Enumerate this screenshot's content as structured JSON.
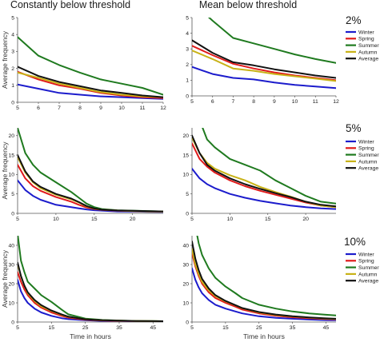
{
  "column_titles": [
    "Constantly below threshold",
    "Mean below threshold"
  ],
  "row_labels": [
    "2%",
    "5%",
    "10%"
  ],
  "ylabel": "Average frequency",
  "xlabel": "Time in hours",
  "legend": [
    "Winter",
    "Spring",
    "Summer",
    "Autumn",
    "Average"
  ],
  "series_colors": {
    "Winter": "#1c1ccc",
    "Spring": "#e01a1a",
    "Summer": "#1f7a1f",
    "Autumn": "#c8b217",
    "Average": "#111111"
  },
  "chart_data": [
    {
      "type": "line",
      "title": "Constantly below threshold",
      "threshold": "2%",
      "ylabel": "Average frequency",
      "xlabel": "",
      "xlim": [
        5,
        12
      ],
      "ylim": [
        0,
        5
      ],
      "xticks": [
        5,
        6,
        7,
        8,
        9,
        10,
        11,
        12
      ],
      "yticks": [
        0,
        1,
        2,
        3,
        4,
        5
      ],
      "x": [
        5,
        6,
        7,
        8,
        9,
        10,
        11,
        12
      ],
      "series": [
        {
          "name": "Winter",
          "values": [
            1.05,
            0.8,
            0.55,
            0.45,
            0.35,
            0.3,
            0.25,
            0.2
          ]
        },
        {
          "name": "Spring",
          "values": [
            1.8,
            1.35,
            1.0,
            0.8,
            0.55,
            0.4,
            0.3,
            0.25
          ]
        },
        {
          "name": "Summer",
          "values": [
            3.85,
            2.75,
            2.2,
            1.75,
            1.35,
            1.1,
            0.85,
            0.45
          ]
        },
        {
          "name": "Autumn",
          "values": [
            1.75,
            1.45,
            1.1,
            0.85,
            0.6,
            0.45,
            0.35,
            0.3
          ]
        },
        {
          "name": "Average",
          "values": [
            2.1,
            1.55,
            1.2,
            0.95,
            0.7,
            0.55,
            0.4,
            0.3
          ]
        }
      ]
    },
    {
      "type": "line",
      "title": "Mean below threshold",
      "threshold": "2%",
      "ylabel": "",
      "xlabel": "",
      "xlim": [
        5,
        12
      ],
      "ylim": [
        0,
        5
      ],
      "xticks": [
        5,
        6,
        7,
        8,
        9,
        10,
        11,
        12
      ],
      "yticks": [
        0,
        1,
        2,
        3,
        4,
        5
      ],
      "x": [
        5,
        6,
        7,
        8,
        9,
        10,
        11,
        12
      ],
      "series": [
        {
          "name": "Winter",
          "values": [
            1.85,
            1.4,
            1.15,
            1.05,
            0.85,
            0.7,
            0.6,
            0.5
          ]
        },
        {
          "name": "Spring",
          "values": [
            3.2,
            2.6,
            2.05,
            1.75,
            1.5,
            1.3,
            1.15,
            1.0
          ]
        },
        {
          "name": "Summer",
          "values": [
            6.0,
            4.8,
            3.7,
            3.35,
            3.0,
            2.65,
            2.35,
            2.1
          ]
        },
        {
          "name": "Autumn",
          "values": [
            2.9,
            2.35,
            1.75,
            1.6,
            1.4,
            1.25,
            1.1,
            0.95
          ]
        },
        {
          "name": "Average",
          "values": [
            3.55,
            2.75,
            2.15,
            1.95,
            1.7,
            1.5,
            1.3,
            1.15
          ]
        }
      ]
    },
    {
      "type": "line",
      "title": "Constantly below threshold",
      "threshold": "5%",
      "ylabel": "Average frequency",
      "xlabel": "",
      "xlim": [
        5,
        24
      ],
      "ylim": [
        0,
        22
      ],
      "xticks": [
        5,
        10,
        15,
        20
      ],
      "yticks": [
        0,
        5,
        10,
        15,
        20
      ],
      "x": [
        5,
        6,
        7,
        8,
        10,
        12,
        13,
        14,
        15,
        16,
        18,
        20,
        22,
        24
      ],
      "series": [
        {
          "name": "Winter",
          "values": [
            8.5,
            6.0,
            4.5,
            3.5,
            2.2,
            1.6,
            1.3,
            1.0,
            0.8,
            0.7,
            0.5,
            0.45,
            0.4,
            0.35
          ]
        },
        {
          "name": "Spring",
          "values": [
            12.5,
            9.0,
            7.0,
            5.8,
            4.2,
            3.0,
            2.2,
            1.5,
            1.1,
            0.9,
            0.7,
            0.6,
            0.5,
            0.45
          ]
        },
        {
          "name": "Summer",
          "values": [
            22.0,
            15.5,
            12.5,
            10.5,
            8.0,
            5.5,
            4.0,
            2.5,
            1.6,
            1.1,
            0.8,
            0.7,
            0.6,
            0.5
          ]
        },
        {
          "name": "Autumn",
          "values": [
            14.5,
            10.5,
            8.0,
            6.5,
            4.8,
            3.6,
            2.8,
            1.8,
            1.2,
            0.95,
            0.75,
            0.6,
            0.5,
            0.45
          ]
        },
        {
          "name": "Average",
          "values": [
            15.0,
            10.8,
            8.2,
            6.8,
            5.0,
            3.8,
            2.9,
            1.9,
            1.25,
            0.95,
            0.75,
            0.65,
            0.55,
            0.5
          ]
        }
      ]
    },
    {
      "type": "line",
      "title": "Mean below threshold",
      "threshold": "5%",
      "ylabel": "",
      "xlabel": "",
      "xlim": [
        5,
        24
      ],
      "ylim": [
        0,
        22
      ],
      "xticks": [
        5,
        10,
        15,
        20
      ],
      "yticks": [
        0,
        5,
        10,
        15,
        20
      ],
      "x": [
        5,
        6,
        7,
        8,
        10,
        12,
        14,
        16,
        18,
        20,
        22,
        24
      ],
      "series": [
        {
          "name": "Winter",
          "values": [
            11.5,
            9.0,
            7.5,
            6.5,
            5.0,
            4.0,
            3.2,
            2.6,
            2.0,
            1.6,
            1.3,
            1.1
          ]
        },
        {
          "name": "Spring",
          "values": [
            18.0,
            14.0,
            12.0,
            10.5,
            8.5,
            7.0,
            5.8,
            4.8,
            3.8,
            2.8,
            2.0,
            1.6
          ]
        },
        {
          "name": "Summer",
          "values": [
            30.0,
            24.0,
            19.0,
            17.0,
            14.0,
            12.5,
            11.0,
            8.5,
            6.5,
            4.5,
            3.0,
            2.5
          ]
        },
        {
          "name": "Autumn",
          "values": [
            19.5,
            15.5,
            13.0,
            11.5,
            9.8,
            8.5,
            6.8,
            5.5,
            4.3,
            3.0,
            2.0,
            1.6
          ]
        },
        {
          "name": "Average",
          "values": [
            20.0,
            15.5,
            12.5,
            11.0,
            9.0,
            7.5,
            6.3,
            5.2,
            4.2,
            3.0,
            2.2,
            1.8
          ]
        }
      ]
    },
    {
      "type": "line",
      "title": "Constantly below threshold",
      "threshold": "10%",
      "ylabel": "Average frequency",
      "xlabel": "Time in hours",
      "xlim": [
        5,
        48
      ],
      "ylim": [
        0,
        45
      ],
      "xticks": [
        5,
        15,
        25,
        35,
        45
      ],
      "yticks": [
        0,
        10,
        20,
        30,
        40
      ],
      "x": [
        5,
        6,
        7,
        8,
        10,
        12,
        15,
        18,
        20,
        25,
        30,
        35,
        40,
        45,
        48
      ],
      "series": [
        {
          "name": "Winter",
          "values": [
            22.0,
            16.0,
            12.5,
            10.0,
            7.0,
            5.0,
            3.2,
            2.0,
            1.5,
            0.9,
            0.6,
            0.5,
            0.4,
            0.3,
            0.3
          ]
        },
        {
          "name": "Spring",
          "values": [
            26.0,
            21.0,
            17.0,
            14.0,
            10.0,
            7.5,
            5.0,
            3.2,
            2.3,
            1.2,
            0.8,
            0.6,
            0.5,
            0.4,
            0.35
          ]
        },
        {
          "name": "Summer",
          "values": [
            46.0,
            32.0,
            26.0,
            21.0,
            17.5,
            14.0,
            10.5,
            6.5,
            4.0,
            1.8,
            1.1,
            0.8,
            0.6,
            0.5,
            0.4
          ]
        },
        {
          "name": "Autumn",
          "values": [
            30.0,
            24.0,
            19.0,
            15.0,
            11.0,
            8.2,
            5.8,
            3.8,
            2.7,
            1.4,
            0.9,
            0.7,
            0.55,
            0.45,
            0.4
          ]
        },
        {
          "name": "Average",
          "values": [
            31.0,
            24.0,
            19.0,
            15.5,
            11.5,
            8.8,
            6.0,
            4.0,
            2.8,
            1.4,
            0.9,
            0.7,
            0.55,
            0.45,
            0.4
          ]
        }
      ]
    },
    {
      "type": "line",
      "title": "Mean below threshold",
      "threshold": "10%",
      "ylabel": "",
      "xlabel": "Time in hours",
      "xlim": [
        5,
        48
      ],
      "ylim": [
        0,
        45
      ],
      "xticks": [
        5,
        15,
        25,
        35,
        45
      ],
      "yticks": [
        0,
        10,
        20,
        30,
        40
      ],
      "x": [
        5,
        6,
        7,
        8,
        10,
        12,
        15,
        18,
        20,
        25,
        30,
        35,
        40,
        45,
        48
      ],
      "series": [
        {
          "name": "Winter",
          "values": [
            28.0,
            22.0,
            18.0,
            15.0,
            11.5,
            9.0,
            7.0,
            5.5,
            4.5,
            3.0,
            2.2,
            1.7,
            1.3,
            1.0,
            0.9
          ]
        },
        {
          "name": "Spring",
          "values": [
            36.0,
            29.0,
            24.0,
            20.0,
            15.5,
            12.5,
            10.0,
            8.0,
            6.5,
            4.5,
            3.3,
            2.5,
            2.0,
            1.6,
            1.4
          ]
        },
        {
          "name": "Summer",
          "values": [
            60.0,
            50.0,
            41.0,
            35.0,
            28.0,
            23.0,
            18.5,
            15.0,
            12.5,
            9.0,
            7.0,
            5.5,
            4.5,
            3.8,
            3.4
          ]
        },
        {
          "name": "Autumn",
          "values": [
            38.0,
            30.0,
            25.0,
            21.0,
            16.5,
            13.5,
            10.8,
            8.7,
            7.2,
            5.0,
            3.7,
            2.9,
            2.3,
            1.8,
            1.6
          ]
        },
        {
          "name": "Average",
          "values": [
            42.0,
            33.0,
            27.0,
            22.5,
            17.5,
            14.0,
            11.0,
            8.8,
            7.3,
            5.2,
            3.9,
            3.0,
            2.4,
            1.9,
            1.7
          ]
        }
      ]
    }
  ]
}
